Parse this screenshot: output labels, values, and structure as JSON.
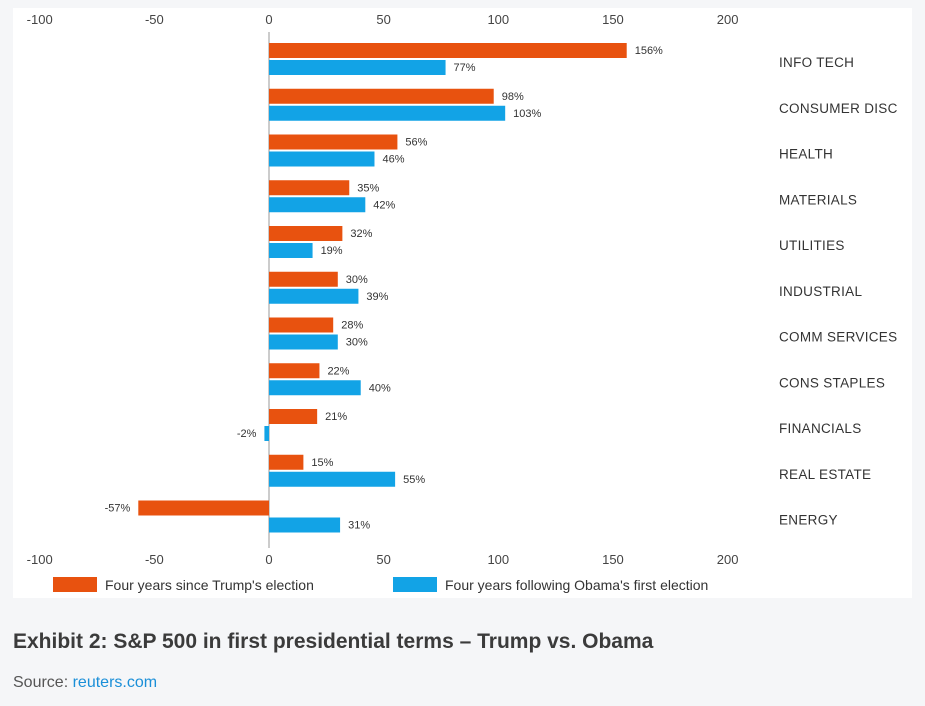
{
  "caption": "Exhibit 2: S&P 500 in first presidential terms – Trump vs. Obama",
  "source": {
    "prefix": "Source: ",
    "link_text": "reuters.com"
  },
  "chart_data": {
    "type": "bar",
    "orientation": "horizontal",
    "title": "",
    "xlabel": "",
    "ylabel": "",
    "xlim": [
      -100,
      200
    ],
    "x_ticks": [
      "-100",
      "-50",
      "0",
      "50",
      "100",
      "150",
      "200"
    ],
    "x_tick_values": [
      -100,
      -50,
      0,
      50,
      100,
      150,
      200
    ],
    "grid": false,
    "legend_position": "bottom",
    "categories": [
      "INFO TECH",
      "CONSUMER DISC",
      "HEALTH",
      "MATERIALS",
      "UTILITIES",
      "INDUSTRIAL",
      "COMM SERVICES",
      "CONS STAPLES",
      "FINANCIALS",
      "REAL ESTATE",
      "ENERGY"
    ],
    "series": [
      {
        "name": "Four years since Trump's election",
        "color": "#e8520f",
        "values": [
          156,
          98,
          56,
          35,
          32,
          30,
          28,
          22,
          21,
          15,
          -57
        ],
        "labels": [
          "156%",
          "98%",
          "56%",
          "35%",
          "32%",
          "30%",
          "28%",
          "22%",
          "21%",
          "15%",
          "-57%"
        ]
      },
      {
        "name": "Four years following Obama's first election",
        "color": "#12a3e6",
        "values": [
          77,
          103,
          46,
          42,
          19,
          39,
          30,
          40,
          -2,
          55,
          31
        ],
        "labels": [
          "77%",
          "103%",
          "46%",
          "42%",
          "19%",
          "39%",
          "30%",
          "40%",
          "-2%",
          "55%",
          "31%"
        ]
      }
    ]
  }
}
